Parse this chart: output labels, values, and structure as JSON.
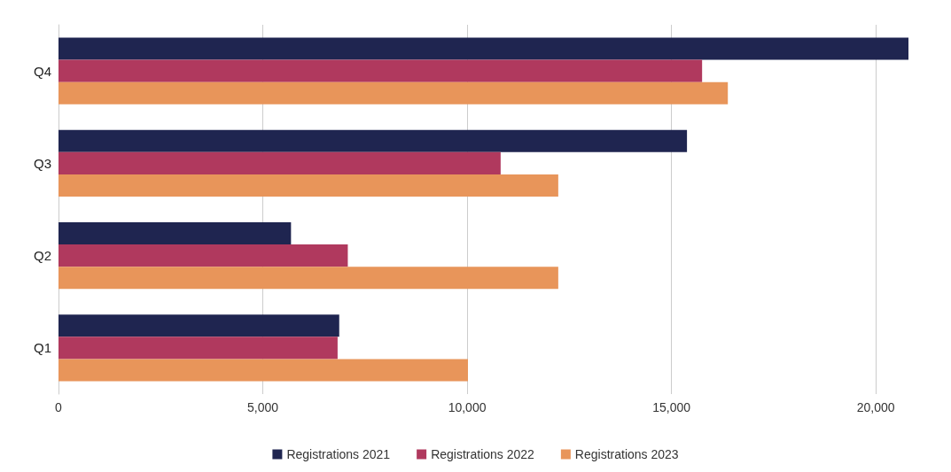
{
  "chart_data": {
    "type": "bar",
    "orientation": "horizontal",
    "categories": [
      "Q4",
      "Q3",
      "Q2",
      "Q1"
    ],
    "series": [
      {
        "name": "Registrations 2021",
        "color": "#1f2550",
        "values": [
          20800,
          15380,
          5690,
          6870
        ]
      },
      {
        "name": "Registrations 2022",
        "color": "#b0395e",
        "values": [
          15750,
          10820,
          7080,
          6830
        ]
      },
      {
        "name": "Registrations 2023",
        "color": "#e8955a",
        "values": [
          16380,
          12230,
          12230,
          10020
        ]
      }
    ],
    "xlim": [
      0,
      20800
    ],
    "xticks": [
      0,
      {
        "value": 5000,
        "label": "5,000"
      },
      {
        "value": 10000,
        "label": "10,000"
      },
      {
        "value": 15000,
        "label": "15,000"
      },
      {
        "value": 20000,
        "label": "20,000"
      }
    ],
    "grid": "x",
    "legend": "bottom"
  }
}
